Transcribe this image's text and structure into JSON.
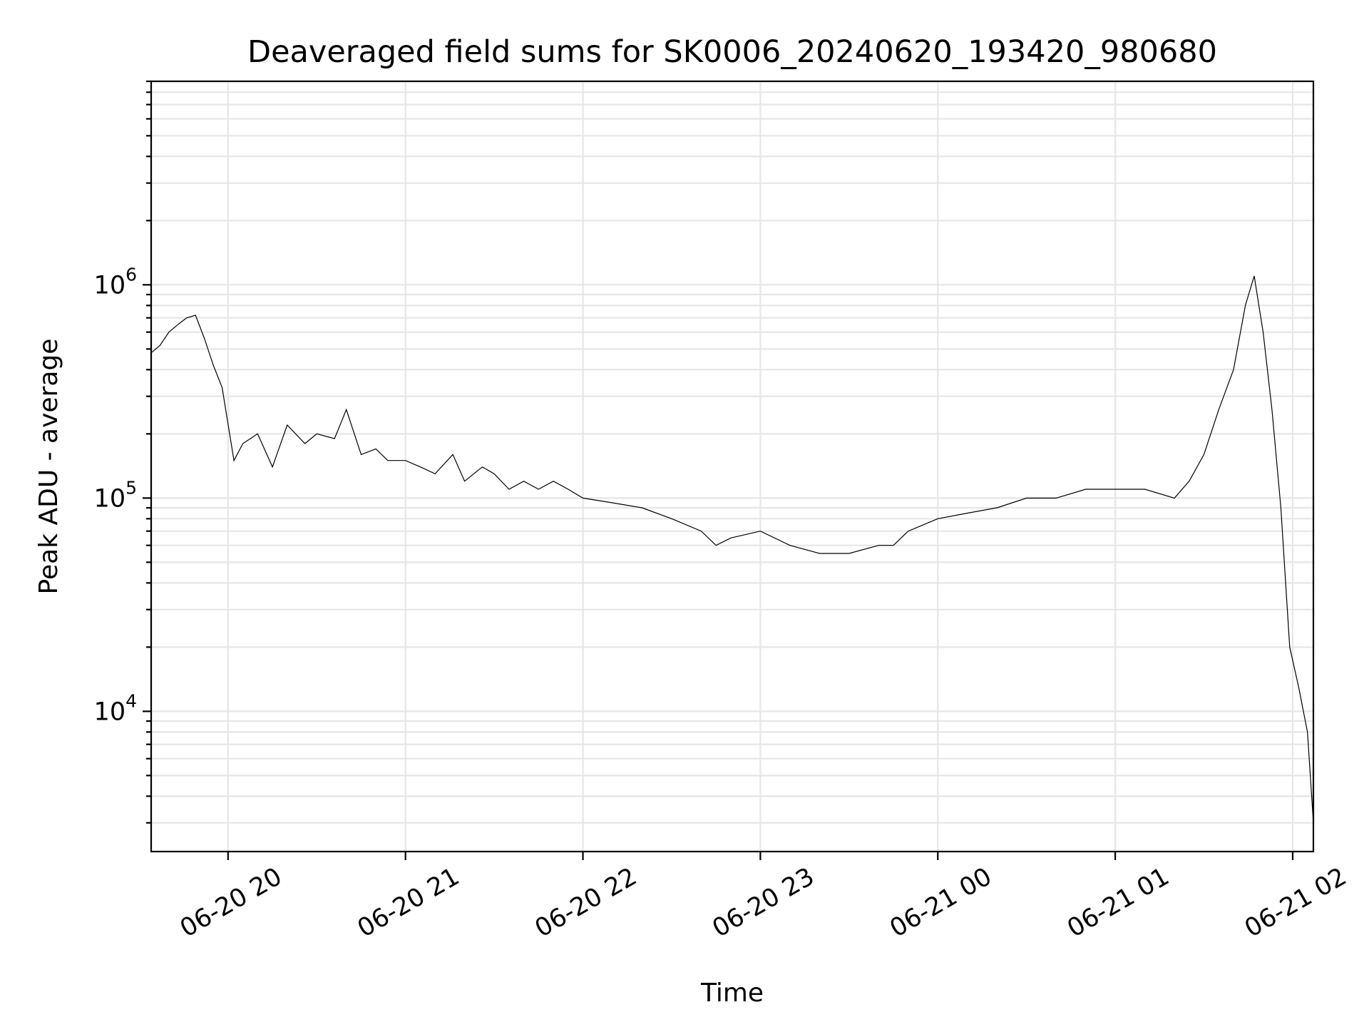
{
  "chart_data": {
    "type": "line",
    "title": "Deaveraged field sums for SK0006_20240620_193420_980680",
    "xlabel": "Time",
    "ylabel": "Peak ADU - average",
    "yscale": "log",
    "xlim": [
      "2024-06-20 19:34",
      "2024-06-21 02:07"
    ],
    "ylim": [
      2200,
      9000000
    ],
    "x_ticks": [
      {
        "value": "2024-06-20 20:00",
        "label": "06-20 20"
      },
      {
        "value": "2024-06-20 21:00",
        "label": "06-20 21"
      },
      {
        "value": "2024-06-20 22:00",
        "label": "06-20 22"
      },
      {
        "value": "2024-06-20 23:00",
        "label": "06-20 23"
      },
      {
        "value": "2024-06-21 00:00",
        "label": "06-21 00"
      },
      {
        "value": "2024-06-21 01:00",
        "label": "06-21 01"
      },
      {
        "value": "2024-06-21 02:00",
        "label": "06-21 02"
      }
    ],
    "y_ticks": [
      {
        "value": 10000,
        "base": "10",
        "exp": "4"
      },
      {
        "value": 100000,
        "base": "10",
        "exp": "5"
      },
      {
        "value": 1000000,
        "base": "10",
        "exp": "6"
      }
    ],
    "grid": "both major and minor",
    "line_color": "#000000",
    "series": [
      {
        "x": [
          "2024-06-20 19:34",
          "2024-06-20 19:37",
          "2024-06-20 19:40",
          "2024-06-20 19:43",
          "2024-06-20 19:46",
          "2024-06-20 19:49",
          "2024-06-20 19:52",
          "2024-06-20 19:55",
          "2024-06-20 19:58",
          "2024-06-20 20:02",
          "2024-06-20 20:05",
          "2024-06-20 20:10",
          "2024-06-20 20:15",
          "2024-06-20 20:20",
          "2024-06-20 20:26",
          "2024-06-20 20:30",
          "2024-06-20 20:36",
          "2024-06-20 20:40",
          "2024-06-20 20:45",
          "2024-06-20 20:50",
          "2024-06-20 20:54",
          "2024-06-20 21:00",
          "2024-06-20 21:05",
          "2024-06-20 21:10",
          "2024-06-20 21:16",
          "2024-06-20 21:20",
          "2024-06-20 21:26",
          "2024-06-20 21:30",
          "2024-06-20 21:35",
          "2024-06-20 21:40",
          "2024-06-20 21:45",
          "2024-06-20 21:50",
          "2024-06-20 21:55",
          "2024-06-20 22:00",
          "2024-06-20 22:10",
          "2024-06-20 22:20",
          "2024-06-20 22:30",
          "2024-06-20 22:40",
          "2024-06-20 22:45",
          "2024-06-20 22:50",
          "2024-06-20 23:00",
          "2024-06-20 23:10",
          "2024-06-20 23:20",
          "2024-06-20 23:30",
          "2024-06-20 23:40",
          "2024-06-20 23:45",
          "2024-06-20 23:50",
          "2024-06-21 00:00",
          "2024-06-21 00:10",
          "2024-06-21 00:20",
          "2024-06-21 00:30",
          "2024-06-21 00:40",
          "2024-06-21 00:50",
          "2024-06-21 01:00",
          "2024-06-21 01:10",
          "2024-06-21 01:20",
          "2024-06-21 01:25",
          "2024-06-21 01:30",
          "2024-06-21 01:35",
          "2024-06-21 01:40",
          "2024-06-21 01:44",
          "2024-06-21 01:47",
          "2024-06-21 01:50",
          "2024-06-21 01:53",
          "2024-06-21 01:56",
          "2024-06-21 01:59",
          "2024-06-21 02:02",
          "2024-06-21 02:05",
          "2024-06-21 02:07"
        ],
        "y": [
          480000,
          520000,
          600000,
          650000,
          700000,
          720000,
          560000,
          420000,
          330000,
          150000,
          180000,
          200000,
          140000,
          220000,
          180000,
          200000,
          190000,
          260000,
          160000,
          170000,
          150000,
          150000,
          140000,
          130000,
          160000,
          120000,
          140000,
          130000,
          110000,
          120000,
          110000,
          120000,
          110000,
          100000,
          95000,
          90000,
          80000,
          70000,
          60000,
          65000,
          70000,
          60000,
          55000,
          55000,
          60000,
          60000,
          70000,
          80000,
          85000,
          90000,
          100000,
          100000,
          110000,
          110000,
          110000,
          100000,
          120000,
          160000,
          260000,
          400000,
          800000,
          1100000,
          600000,
          260000,
          90000,
          20000,
          13000,
          8000,
          3000
        ]
      }
    ]
  }
}
